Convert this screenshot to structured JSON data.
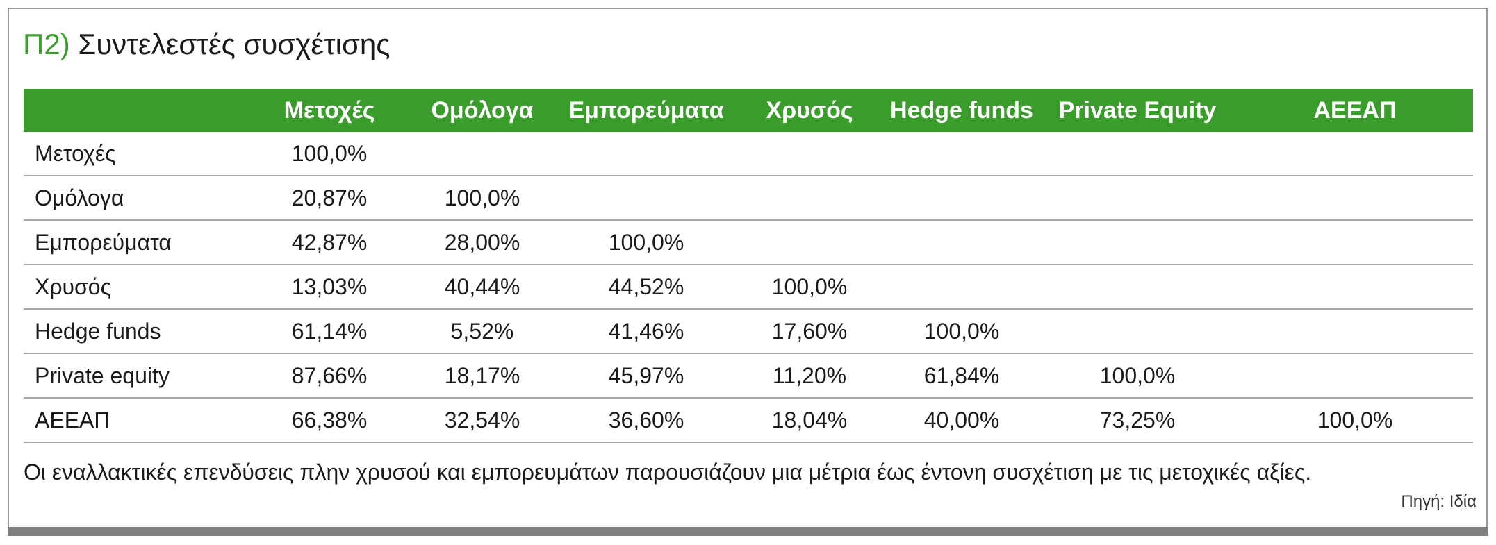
{
  "title": {
    "code": "Π2)",
    "text": "Συντελεστές συσχέτισης"
  },
  "table": {
    "columns": [
      "Μετοχές",
      "Ομόλογα",
      "Εμπορεύματα",
      "Χρυσός",
      "Hedge funds",
      "Private Equity",
      "ΑΕΕΑΠ"
    ],
    "rows": [
      {
        "label": "Μετοχές",
        "cells": [
          "100,0%",
          "",
          "",
          "",
          "",
          "",
          ""
        ]
      },
      {
        "label": "Ομόλογα",
        "cells": [
          "20,87%",
          "100,0%",
          "",
          "",
          "",
          "",
          ""
        ]
      },
      {
        "label": "Εμπορεύματα",
        "cells": [
          "42,87%",
          "28,00%",
          "100,0%",
          "",
          "",
          "",
          ""
        ]
      },
      {
        "label": "Χρυσός",
        "cells": [
          "13,03%",
          "40,44%",
          "44,52%",
          "100,0%",
          "",
          "",
          ""
        ]
      },
      {
        "label": "Hedge funds",
        "cells": [
          "61,14%",
          "5,52%",
          "41,46%",
          "17,60%",
          "100,0%",
          "",
          ""
        ]
      },
      {
        "label": "Private equity",
        "cells": [
          "87,66%",
          "18,17%",
          "45,97%",
          "11,20%",
          "61,84%",
          "100,0%",
          ""
        ]
      },
      {
        "label": "ΑΕΕΑΠ",
        "cells": [
          "66,38%",
          "32,54%",
          "36,60%",
          "18,04%",
          "40,00%",
          "73,25%",
          "100,0%"
        ]
      }
    ]
  },
  "note": "Οι εναλλακτικές επενδύσεις πλην χρυσού και εμπορευμάτων παρουσιάζουν μια μέτρια έως έντονη συσχέτιση με τις μετοχικές αξίες.",
  "source": "Πηγή: Ιδία",
  "colors": {
    "accent": "#3a9c2b",
    "header_text": "#ffffff",
    "rule": "#a9a9a9",
    "frame": "#9a9a9a",
    "bottom_bar": "#7f7f7f"
  }
}
